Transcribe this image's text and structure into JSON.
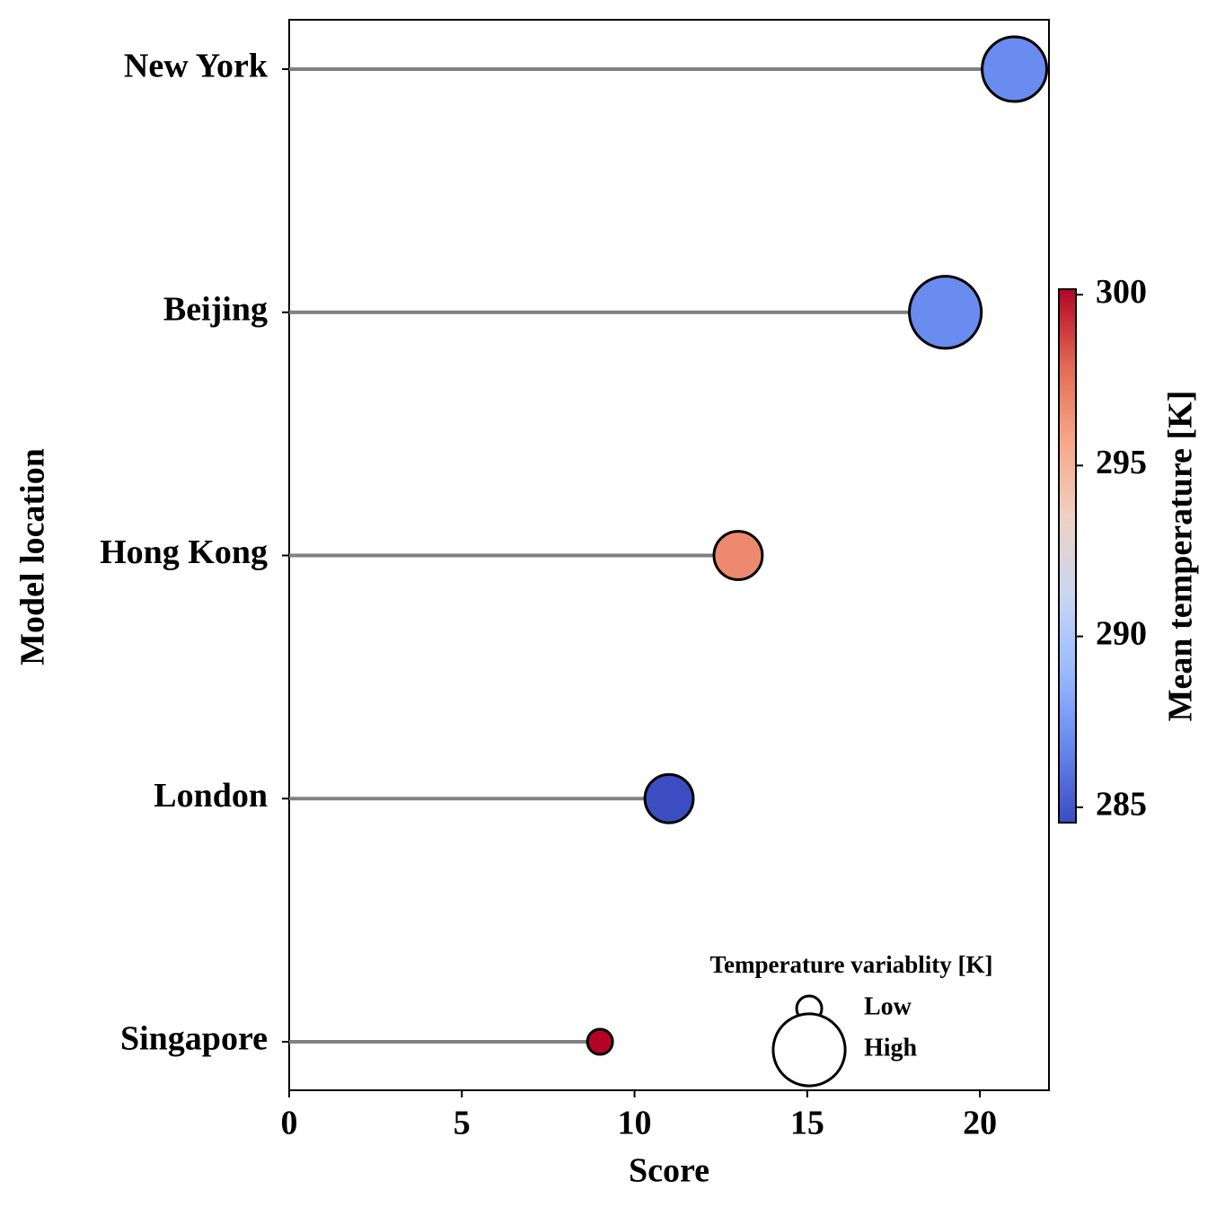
{
  "chart_data": {
    "type": "lollipop",
    "xlabel": "Score",
    "ylabel": "Model location",
    "categories": [
      "New York",
      "Beijing",
      "Hong Kong",
      "London",
      "Singapore"
    ],
    "values": [
      21,
      19,
      13,
      11,
      9
    ],
    "temperature": [
      286.9,
      286.9,
      296.8,
      284.6,
      300.2
    ],
    "variability": [
      6.6,
      8.2,
      3.7,
      3.7,
      1.0
    ],
    "stem_color": "#808080",
    "xlim": [
      0,
      22
    ],
    "xticks": [
      0,
      5,
      10,
      15,
      20
    ],
    "colorbar": {
      "label": "Mean temperature [K]",
      "clim": [
        284.55,
        300.16
      ],
      "ticks": [
        285,
        290,
        295,
        300
      ],
      "colormap": [
        "#3b4cc0",
        "#6788ee",
        "#9abbff",
        "#c9d7f0",
        "#edd1c2",
        "#f7a889",
        "#e26952",
        "#b40426"
      ]
    },
    "size_legend": {
      "title": "Temperature variablity [K]",
      "labels": [
        "Low",
        "High"
      ]
    }
  }
}
